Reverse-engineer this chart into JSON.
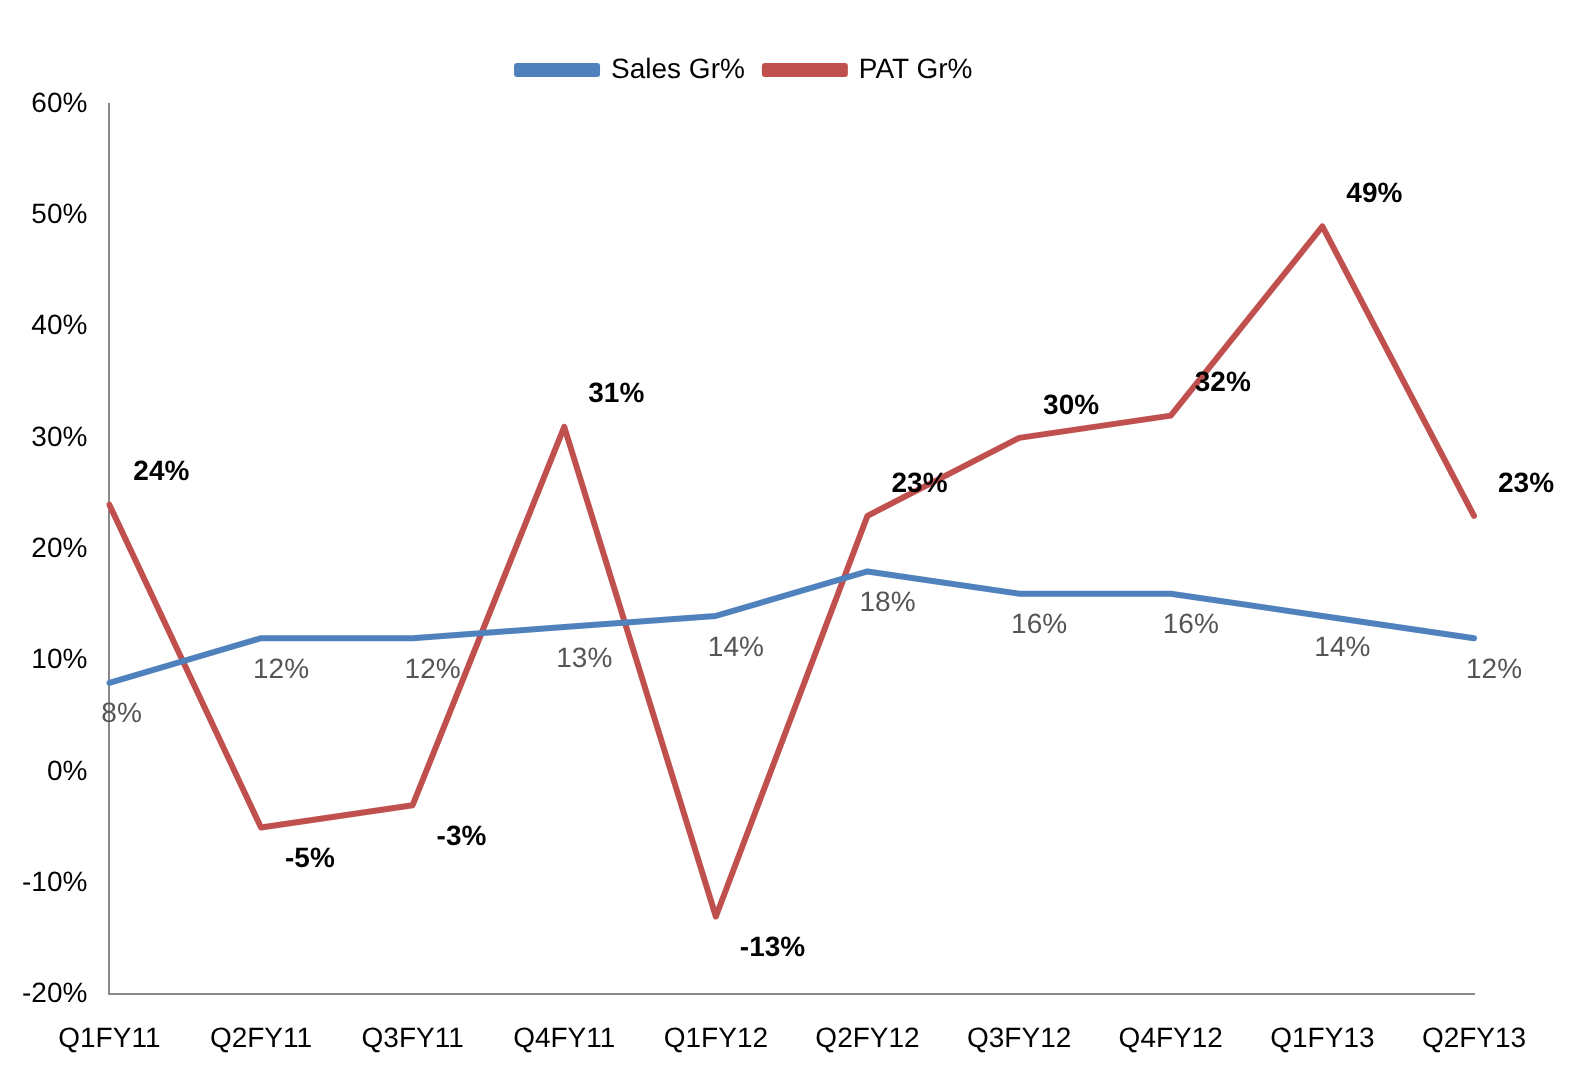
{
  "chart_data": {
    "type": "line",
    "categories": [
      "Q1FY11",
      "Q2FY11",
      "Q3FY11",
      "Q4FY11",
      "Q1FY12",
      "Q2FY12",
      "Q3FY12",
      "Q4FY12",
      "Q1FY13",
      "Q2FY13"
    ],
    "series": [
      {
        "name": "Sales Gr%",
        "color": "#4f81bd",
        "values": [
          8,
          12,
          12,
          13,
          14,
          18,
          16,
          16,
          14,
          12
        ],
        "value_labels": [
          "8%",
          "12%",
          "12%",
          "13%",
          "14%",
          "18%",
          "16%",
          "16%",
          "14%",
          "12%"
        ]
      },
      {
        "name": "PAT Gr%",
        "color": "#c0504d",
        "values": [
          24,
          -5,
          -3,
          31,
          -13,
          23,
          30,
          32,
          49,
          23
        ],
        "value_labels": [
          "24%",
          "-5%",
          "-3%",
          "31%",
          "-13%",
          "23%",
          "30%",
          "32%",
          "49%",
          "23%"
        ]
      }
    ],
    "ylim": [
      -20,
      60
    ],
    "yticks": [
      {
        "value": -20,
        "label": "-20%"
      },
      {
        "value": -10,
        "label": "-10%"
      },
      {
        "value": 0,
        "label": "0%"
      },
      {
        "value": 10,
        "label": "10%"
      },
      {
        "value": 20,
        "label": "20%"
      },
      {
        "value": 30,
        "label": "30%"
      },
      {
        "value": 40,
        "label": "40%"
      },
      {
        "value": 50,
        "label": "50%"
      },
      {
        "value": 60,
        "label": "60%"
      }
    ],
    "grid": false,
    "legend": "top",
    "marker": "none",
    "line_style": "solid"
  }
}
